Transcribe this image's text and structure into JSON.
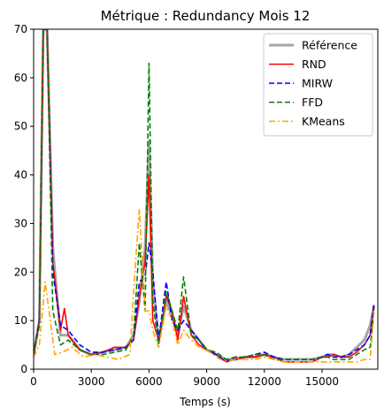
{
  "chart_data": {
    "type": "line",
    "title": "Métrique : Redundancy Mois 12",
    "xlabel": "Temps (s)",
    "ylabel": "",
    "xlim": [
      0,
      17900
    ],
    "ylim": [
      0,
      70
    ],
    "xticks": [
      0,
      3000,
      6000,
      9000,
      12000,
      15000
    ],
    "yticks": [
      0,
      10,
      20,
      30,
      40,
      50,
      60,
      70
    ],
    "legend_position": "top-right",
    "grid": false,
    "series": [
      {
        "name": "Référence",
        "color": "#a6a6a6",
        "dash": "solid",
        "width": 3,
        "x": [
          0,
          300,
          500,
          700,
          1000,
          1400,
          1800,
          2400,
          3000,
          3600,
          4200,
          4800,
          5200,
          5500,
          5800,
          6000,
          6200,
          6500,
          6900,
          7200,
          7500,
          7800,
          8200,
          8600,
          9000,
          9500,
          10000,
          10500,
          11000,
          11500,
          12000,
          12500,
          13000,
          13500,
          14000,
          14500,
          15000,
          15300,
          15600,
          16000,
          16400,
          16800,
          17200,
          17500,
          17700
        ],
        "y": [
          3,
          10,
          70,
          70,
          25,
          7,
          7,
          4,
          3,
          3.5,
          4,
          4.5,
          7,
          14,
          25,
          47,
          18,
          6,
          14,
          11,
          7,
          13,
          8,
          6,
          4,
          3,
          2,
          2,
          2.5,
          2.5,
          3,
          2.5,
          2,
          2,
          2,
          2,
          2.5,
          3,
          3,
          2.5,
          3,
          4.5,
          6,
          9,
          13
        ]
      },
      {
        "name": "RND",
        "color": "#ff0000",
        "dash": "solid",
        "width": 1.6,
        "x": [
          0,
          300,
          500,
          700,
          1000,
          1400,
          1600,
          1800,
          2400,
          3000,
          3600,
          4200,
          4800,
          5200,
          5500,
          5800,
          6000,
          6200,
          6500,
          6900,
          7200,
          7500,
          7800,
          8200,
          8600,
          9000,
          9500,
          10000,
          10500,
          11000,
          11500,
          12000,
          12500,
          13000,
          13500,
          14000,
          14500,
          15000,
          15300,
          15600,
          16000,
          16400,
          16800,
          17200,
          17500,
          17700
        ],
        "y": [
          3,
          10,
          70,
          70,
          22,
          8,
          12.5,
          7,
          4,
          3,
          3.5,
          4.5,
          4.5,
          6,
          15,
          22,
          40,
          10,
          6,
          15,
          12,
          6,
          15,
          7,
          5,
          4,
          3,
          1.5,
          2,
          2.5,
          2.5,
          3,
          2.5,
          1.5,
          1.5,
          1.5,
          1.5,
          2.5,
          2.5,
          3,
          2.5,
          2.5,
          3.5,
          5,
          7,
          13
        ]
      },
      {
        "name": "MIRW",
        "color": "#0000ff",
        "dash": "6,3",
        "width": 1.6,
        "x": [
          0,
          300,
          500,
          700,
          1000,
          1400,
          1800,
          2400,
          3000,
          3600,
          4200,
          4800,
          5200,
          5500,
          5800,
          6000,
          6200,
          6500,
          6900,
          7200,
          7500,
          7800,
          8200,
          8600,
          9000,
          9500,
          10000,
          10500,
          11000,
          11500,
          12000,
          12500,
          13000,
          13500,
          14000,
          14500,
          15000,
          15300,
          15600,
          16000,
          16400,
          16800,
          17200,
          17500,
          17700
        ],
        "y": [
          3,
          10,
          70,
          70,
          20,
          9,
          8,
          5,
          3.5,
          3.5,
          4,
          4.5,
          6,
          18,
          19,
          26,
          20,
          6,
          18,
          10,
          8,
          10,
          8,
          6,
          4,
          3,
          1.5,
          2.5,
          2.5,
          3,
          3.5,
          2.5,
          2,
          2,
          2,
          2,
          2.5,
          3,
          2.5,
          2.5,
          3,
          4,
          5,
          7,
          13.5
        ]
      },
      {
        "name": "FFD",
        "color": "#008000",
        "dash": "6,3",
        "width": 1.6,
        "x": [
          0,
          300,
          500,
          700,
          1000,
          1400,
          1800,
          2400,
          3000,
          3600,
          4200,
          4800,
          5200,
          5500,
          5800,
          6000,
          6200,
          6500,
          6900,
          7200,
          7500,
          7800,
          8200,
          8600,
          9000,
          9500,
          10000,
          10500,
          11000,
          11500,
          12000,
          12500,
          13000,
          13500,
          14000,
          14500,
          15000,
          15300,
          15600,
          16000,
          16400,
          16800,
          17200,
          17500,
          17700
        ],
        "y": [
          3,
          9,
          70,
          70,
          12,
          5,
          6,
          4,
          3,
          3,
          3.5,
          4,
          7,
          26,
          12,
          63,
          14,
          5,
          16,
          12,
          8,
          19,
          7,
          6,
          4,
          3.5,
          2,
          2.5,
          2.5,
          3,
          3,
          2,
          2,
          2,
          2,
          2,
          2.5,
          2.5,
          2,
          2,
          2,
          3,
          4,
          4.5,
          12
        ]
      },
      {
        "name": "KMeans",
        "color": "#ffa500",
        "dash": "7,3,2,3",
        "width": 1.6,
        "x": [
          0,
          300,
          600,
          800,
          1100,
          1500,
          2000,
          2600,
          3200,
          3800,
          4400,
          5000,
          5300,
          5500,
          5800,
          6000,
          6200,
          6500,
          6900,
          7200,
          7500,
          7800,
          8200,
          8600,
          9000,
          9500,
          10000,
          10500,
          11000,
          11500,
          12000,
          12500,
          13000,
          13500,
          14000,
          14500,
          15000,
          15300,
          15600,
          16000,
          16400,
          16800,
          17200,
          17500,
          17700
        ],
        "y": [
          2.5,
          5,
          18,
          12,
          3,
          3.5,
          4.5,
          2.5,
          3,
          2.5,
          2,
          3,
          22,
          33,
          12,
          12,
          8,
          4.5,
          13,
          10,
          5,
          8,
          6,
          4.5,
          4,
          2.5,
          1.5,
          2,
          2,
          2,
          2.5,
          2,
          1.5,
          1.5,
          1.5,
          1.5,
          1.5,
          1.5,
          1.5,
          1.5,
          1.5,
          1.5,
          2,
          2,
          12
        ]
      }
    ]
  }
}
